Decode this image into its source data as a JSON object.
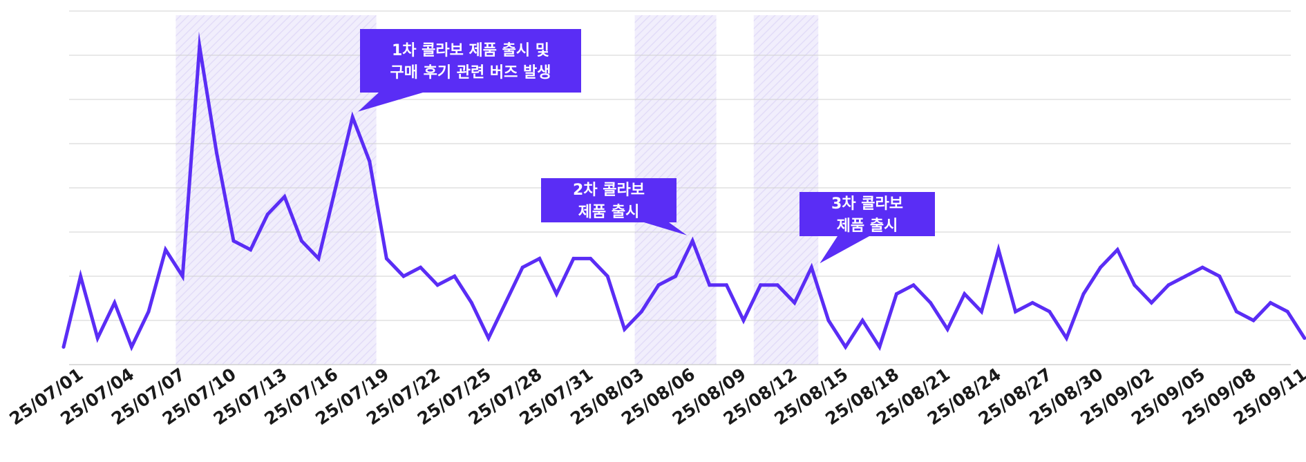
{
  "chart_data": {
    "type": "line",
    "title": "",
    "xlabel": "",
    "ylabel": "",
    "ylim": [
      0,
      8
    ],
    "grid": true,
    "colors": {
      "line": "#5a2df5",
      "callout": "#5a2df5",
      "highlight": "#e9e5fb",
      "grid": "#d0d0d0"
    },
    "x": [
      "25/07/01",
      "25/07/02",
      "25/07/03",
      "25/07/04",
      "25/07/05",
      "25/07/06",
      "25/07/07",
      "25/07/08",
      "25/07/09",
      "25/07/10",
      "25/07/11",
      "25/07/12",
      "25/07/13",
      "25/07/14",
      "25/07/15",
      "25/07/16",
      "25/07/17",
      "25/07/18",
      "25/07/19",
      "25/07/20",
      "25/07/21",
      "25/07/22",
      "25/07/23",
      "25/07/24",
      "25/07/25",
      "25/07/26",
      "25/07/27",
      "25/07/28",
      "25/07/29",
      "25/07/30",
      "25/07/31",
      "25/08/01",
      "25/08/02",
      "25/08/03",
      "25/08/04",
      "25/08/05",
      "25/08/06",
      "25/08/07",
      "25/08/08",
      "25/08/09",
      "25/08/10",
      "25/08/11",
      "25/08/12",
      "25/08/13",
      "25/08/14",
      "25/08/15",
      "25/08/16",
      "25/08/17",
      "25/08/18",
      "25/08/19",
      "25/08/20",
      "25/08/21",
      "25/08/22",
      "25/08/23",
      "25/08/24",
      "25/08/25",
      "25/08/26",
      "25/08/27",
      "25/08/28",
      "25/08/29",
      "25/08/30",
      "25/08/31",
      "25/09/01",
      "25/09/02",
      "25/09/03",
      "25/09/04",
      "25/09/05",
      "25/09/06",
      "25/09/07",
      "25/09/08",
      "25/09/09",
      "25/09/10",
      "25/09/11",
      "25/09/12"
    ],
    "tick_labels": [
      "25/07/01",
      "25/07/04",
      "25/07/07",
      "25/07/10",
      "25/07/13",
      "25/07/16",
      "25/07/19",
      "25/07/22",
      "25/07/25",
      "25/07/28",
      "25/07/31",
      "25/08/03",
      "25/08/06",
      "25/08/09",
      "25/08/12",
      "25/08/15",
      "25/08/18",
      "25/08/21",
      "25/08/24",
      "25/08/27",
      "25/08/30",
      "25/09/02",
      "25/09/05",
      "25/09/08",
      "25/09/11"
    ],
    "values": [
      0.4,
      2.0,
      0.6,
      1.4,
      0.4,
      1.2,
      2.6,
      2.0,
      7.2,
      4.8,
      2.8,
      2.6,
      3.4,
      3.8,
      2.8,
      2.4,
      4.0,
      5.6,
      4.6,
      2.4,
      2.0,
      2.2,
      1.8,
      2.0,
      1.4,
      0.6,
      1.4,
      2.2,
      2.4,
      1.6,
      2.4,
      2.4,
      2.0,
      0.8,
      1.2,
      1.8,
      2.0,
      2.8,
      1.8,
      1.8,
      1.0,
      1.8,
      1.8,
      1.4,
      2.2,
      1.0,
      0.4,
      1.0,
      0.4,
      1.6,
      1.8,
      1.4,
      0.8,
      1.6,
      1.2,
      2.6,
      1.2,
      1.4,
      1.2,
      0.6,
      1.6,
      2.2,
      2.6,
      1.8,
      1.4,
      1.8,
      2.0,
      2.2,
      2.0,
      1.2,
      1.0,
      1.4,
      1.2,
      0.6
    ],
    "highlights": [
      {
        "start": "25/07/08",
        "end": "25/07/19"
      },
      {
        "start": "25/08/04",
        "end": "25/08/08"
      },
      {
        "start": "25/08/11",
        "end": "25/08/14"
      }
    ],
    "annotations": [
      {
        "lines": [
          "1차 콜라보 제품 출시 및",
          "구매 후기 관련 버즈 발생"
        ],
        "target": "25/07/18"
      },
      {
        "lines": [
          "2차 콜라보",
          "제품 출시"
        ],
        "target": "25/08/07"
      },
      {
        "lines": [
          "3차 콜라보",
          "제품 출시"
        ],
        "target": "25/08/14"
      }
    ]
  }
}
